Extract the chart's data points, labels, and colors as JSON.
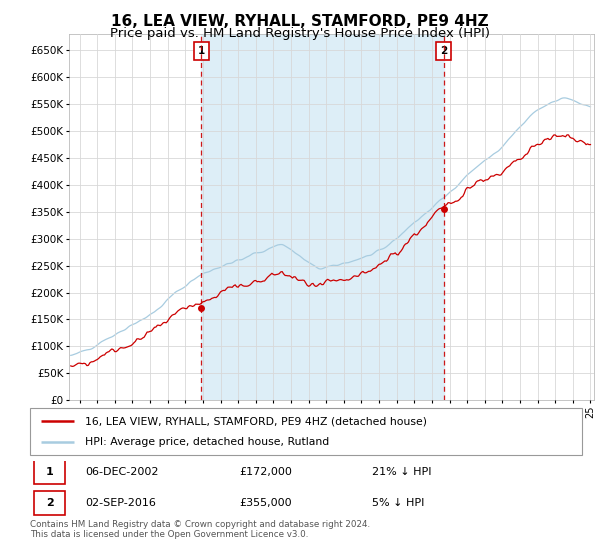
{
  "title": "16, LEA VIEW, RYHALL, STAMFORD, PE9 4HZ",
  "subtitle": "Price paid vs. HM Land Registry's House Price Index (HPI)",
  "ylim": [
    0,
    680000
  ],
  "yticks": [
    0,
    50000,
    100000,
    150000,
    200000,
    250000,
    300000,
    350000,
    400000,
    450000,
    500000,
    550000,
    600000,
    650000
  ],
  "ytick_labels": [
    "£0",
    "£50K",
    "£100K",
    "£150K",
    "£200K",
    "£250K",
    "£300K",
    "£350K",
    "£400K",
    "£450K",
    "£500K",
    "£550K",
    "£600K",
    "£650K"
  ],
  "hpi_color": "#a8cce0",
  "price_color": "#cc0000",
  "shade_color": "#ddeef7",
  "sale1_date": 2002.92,
  "sale1_price": 172000,
  "sale1_label": "1",
  "sale2_date": 2016.67,
  "sale2_price": 355000,
  "sale2_label": "2",
  "xlim_start": 1995.4,
  "xlim_end": 2025.2,
  "xtick_start": 1996,
  "xtick_end": 2025,
  "legend_entries": [
    {
      "label": "16, LEA VIEW, RYHALL, STAMFORD, PE9 4HZ (detached house)",
      "color": "#cc0000"
    },
    {
      "label": "HPI: Average price, detached house, Rutland",
      "color": "#a8cce0"
    }
  ],
  "table_rows": [
    {
      "num": "1",
      "date": "06-DEC-2002",
      "price": "£172,000",
      "pct": "21% ↓ HPI"
    },
    {
      "num": "2",
      "date": "02-SEP-2016",
      "price": "£355,000",
      "pct": "5% ↓ HPI"
    }
  ],
  "footnote": "Contains HM Land Registry data © Crown copyright and database right 2024.\nThis data is licensed under the Open Government Licence v3.0.",
  "background_color": "#ffffff",
  "grid_color": "#d8d8d8",
  "title_fontsize": 11,
  "subtitle_fontsize": 9.5
}
